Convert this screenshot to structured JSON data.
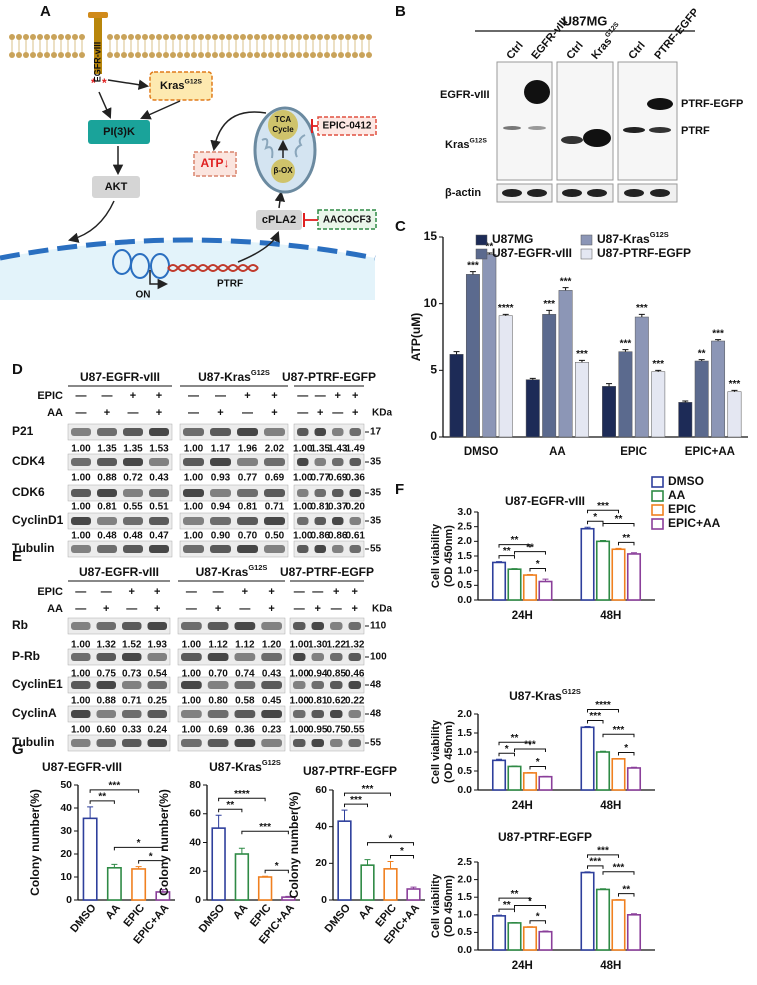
{
  "figure": {
    "panel_labels": [
      "A",
      "B",
      "C",
      "D",
      "E",
      "F",
      "G"
    ],
    "A": {
      "egfr": "EGFR-vIII",
      "kras": {
        "text": "Kras",
        "sup": "G12S"
      },
      "pi3k": "PI(3)K",
      "akt": "AKT",
      "atp": "ATP↓",
      "tca": [
        "TCA",
        "Cycle"
      ],
      "box": "β-OX",
      "epic": "EPIC-0412",
      "cpla2": "cPLA2",
      "aacocf3": "AACOCF3",
      "on": "ON",
      "ptrf": "PTRF"
    },
    "B": {
      "title": "U87MG",
      "lanes": [
        "Ctrl",
        "EGFR-vIII",
        "Ctrl",
        {
          "text": "Kras",
          "sup": "G12S"
        },
        "Ctrl",
        "PTRF-EGFP"
      ],
      "left": [
        "EGFR-vIII",
        {
          "text": "Kras",
          "sup": "G12S"
        },
        "β-actin"
      ],
      "right": [
        "PTRF-EGFP",
        "PTRF"
      ]
    },
    "D": {
      "groups": [
        "U87-EGFR-vIII",
        {
          "text": "U87-Kras",
          "sup": "G12S"
        },
        "U87-PTRF-EGFP"
      ],
      "treatments": [
        {
          "label": "EPIC",
          "signs": [
            "—",
            "—",
            "+",
            "+"
          ]
        },
        {
          "label": "AA",
          "signs": [
            "—",
            "+",
            "—",
            "+"
          ]
        }
      ],
      "kda_label": "KDa",
      "rows": [
        {
          "label": "P21",
          "kda": 17,
          "quant": [
            [
              "1.00",
              "1.35",
              "1.35",
              "1.53"
            ],
            [
              "1.00",
              "1.17",
              "1.96",
              "2.02"
            ],
            [
              "1.00",
              "1.35",
              "1.43",
              "1.49"
            ]
          ]
        },
        {
          "label": "CDK4",
          "kda": 35,
          "quant": [
            [
              "1.00",
              "0.88",
              "0.72",
              "0.43"
            ],
            [
              "1.00",
              "0.93",
              "0.77",
              "0.69"
            ],
            [
              "1.00",
              "0.77",
              "0.69",
              "0.36"
            ]
          ]
        },
        {
          "label": "CDK6",
          "kda": 35,
          "quant": [
            [
              "1.00",
              "0.81",
              "0.55",
              "0.51"
            ],
            [
              "1.00",
              "0.94",
              "0.81",
              "0.71"
            ],
            [
              "1.00",
              "0.81",
              "0.37",
              "0.20"
            ]
          ]
        },
        {
          "label": "CyclinD1",
          "kda": 35,
          "quant": [
            [
              "1.00",
              "0.48",
              "0.48",
              "0.47"
            ],
            [
              "1.00",
              "0.90",
              "0.70",
              "0.50"
            ],
            [
              "1.00",
              "0.86",
              "0.86",
              "0.61"
            ]
          ]
        },
        {
          "label": "Tubulin",
          "kda": 55
        }
      ]
    },
    "E": {
      "groups": [
        "U87-EGFR-vIII",
        {
          "text": "U87-Kras",
          "sup": "G12S"
        },
        "U87-PTRF-EGFP"
      ],
      "treatments": [
        {
          "label": "EPIC",
          "signs": [
            "—",
            "—",
            "+",
            "+"
          ]
        },
        {
          "label": "AA",
          "signs": [
            "—",
            "+",
            "—",
            "+"
          ]
        }
      ],
      "kda_label": "KDa",
      "rows": [
        {
          "label": "Rb",
          "kda": 110,
          "quant": [
            [
              "1.00",
              "1.32",
              "1.52",
              "1.93"
            ],
            [
              "1.00",
              "1.12",
              "1.12",
              "1.20"
            ],
            [
              "1.00",
              "1.30",
              "1.22",
              "1.32"
            ]
          ]
        },
        {
          "label": "P-Rb",
          "kda": 100,
          "quant": [
            [
              "1.00",
              "0.75",
              "0.73",
              "0.54"
            ],
            [
              "1.00",
              "0.70",
              "0.74",
              "0.43"
            ],
            [
              "1.00",
              "0.94",
              "0.85",
              "0.46"
            ]
          ]
        },
        {
          "label": "CyclinE1",
          "kda": 48,
          "quant": [
            [
              "1.00",
              "0.88",
              "0.71",
              "0.25"
            ],
            [
              "1.00",
              "0.80",
              "0.58",
              "0.45"
            ],
            [
              "1.00",
              "0.81",
              "0.62",
              "0.22"
            ]
          ]
        },
        {
          "label": "CyclinA",
          "kda": 48,
          "quant": [
            [
              "1.00",
              "0.60",
              "0.33",
              "0.24"
            ],
            [
              "1.00",
              "0.69",
              "0.36",
              "0.23"
            ],
            [
              "1.00",
              "0.95",
              "0.75",
              "0.55"
            ]
          ]
        },
        {
          "label": "Tubulin",
          "kda": 55
        }
      ]
    }
  },
  "chart_data": [
    {
      "type": "bar",
      "ylabel": "ATP(uM)",
      "categories": [
        "DMSO",
        "AA",
        "EPIC",
        "EPIC+AA"
      ],
      "ylim": [
        0,
        15
      ],
      "yticks": [
        0,
        5,
        10,
        15
      ],
      "legend": "top",
      "series": [
        {
          "name": "U87MG",
          "color": "#1d2b57",
          "values": [
            6.2,
            4.3,
            3.8,
            2.6
          ],
          "errors": [
            0.2,
            0.1,
            0.2,
            0.1
          ]
        },
        {
          "name": "U87-EGFR-vIII",
          "color": "#5b6a8e",
          "values": [
            12.2,
            9.2,
            6.4,
            5.7
          ],
          "errors": [
            0.2,
            0.3,
            0.15,
            0.1
          ],
          "significance": [
            "***",
            "***",
            "***",
            "**"
          ]
        },
        {
          "name": {
            "text": "U87-Kras",
            "sup": "G12S"
          },
          "color": "#8c96b6",
          "values": [
            13.7,
            11.0,
            9.0,
            7.2
          ],
          "errors": [
            0.1,
            0.2,
            0.2,
            0.1
          ],
          "significance": [
            "**",
            "***",
            "***",
            "***"
          ]
        },
        {
          "name": "U87-PTRF-EGFP",
          "color": "#e4e7f2",
          "values": [
            9.1,
            5.6,
            4.9,
            3.4
          ],
          "errors": [
            0.1,
            0.15,
            0.1,
            0.1
          ],
          "significance": [
            "****",
            "***",
            "***",
            "***"
          ]
        }
      ]
    },
    {
      "type": "bar",
      "title": "U87-EGFR-vIII",
      "ylabel": [
        "Cell viability",
        "(OD 450nm)"
      ],
      "categories": [
        "24H",
        "48H"
      ],
      "ylim": [
        0,
        3
      ],
      "yticks": [
        {
          "value": 0,
          "label": "0.0"
        },
        0.5,
        {
          "value": 1,
          "label": "1.0"
        },
        1.5,
        {
          "value": 2,
          "label": "2.0"
        },
        2.5,
        {
          "value": 3,
          "label": "3.0"
        }
      ],
      "legend": "right",
      "hollow": true,
      "series": [
        {
          "name": "DMSO",
          "color": "#2e3f9c",
          "values": [
            1.28,
            2.43
          ],
          "errors": [
            0.03,
            0.05
          ]
        },
        {
          "name": "AA",
          "color": "#2f8a45",
          "values": [
            1.05,
            2.0
          ],
          "errors": [
            0.02,
            0.03
          ]
        },
        {
          "name": "EPIC",
          "color": "#f08020",
          "values": [
            0.85,
            1.73
          ],
          "errors": [
            0.02,
            0.03
          ]
        },
        {
          "name": "EPIC+AA",
          "color": "#8a3f9a",
          "values": [
            0.63,
            1.57
          ],
          "errors": [
            0.08,
            0.04
          ]
        }
      ],
      "annotations": [
        [
          "**",
          "**",
          "**",
          "*"
        ],
        [
          "*",
          "***",
          "**",
          "**"
        ]
      ]
    },
    {
      "type": "bar",
      "title": {
        "text": "U87-Kras",
        "sup": "G12S"
      },
      "ylabel": [
        "Cell viability",
        "(OD 450nm)"
      ],
      "categories": [
        "24H",
        "48H"
      ],
      "ylim": [
        0,
        2
      ],
      "yticks": [
        {
          "value": 0,
          "label": "0.0"
        },
        0.5,
        {
          "value": 1,
          "label": "1.0"
        },
        1.5,
        {
          "value": 2,
          "label": "2.0"
        }
      ],
      "hollow": true,
      "series": [
        {
          "color": "#2e3f9c",
          "values": [
            0.78,
            1.65
          ],
          "errors": [
            0.03,
            0.02
          ]
        },
        {
          "color": "#2f8a45",
          "values": [
            0.62,
            1.0
          ],
          "errors": [
            0.01,
            0.02
          ]
        },
        {
          "color": "#f08020",
          "values": [
            0.45,
            0.82
          ],
          "errors": [
            0.01,
            0.01
          ]
        },
        {
          "color": "#8a3f9a",
          "values": [
            0.35,
            0.58
          ],
          "errors": [
            0.01,
            0.02
          ]
        }
      ],
      "annotations": [
        [
          "*",
          "**",
          "***",
          "*"
        ],
        [
          "***",
          "****",
          "***",
          "*"
        ]
      ]
    },
    {
      "type": "bar",
      "title": "U87-PTRF-EGFP",
      "ylabel": [
        "Cell viability",
        "(OD 450nm)"
      ],
      "categories": [
        "24H",
        "48H"
      ],
      "ylim": [
        0,
        2.5
      ],
      "yticks": [
        {
          "value": 0,
          "label": "0.0"
        },
        0.5,
        {
          "value": 1,
          "label": "1.0"
        },
        1.5,
        {
          "value": 2,
          "label": "2.0"
        },
        2.5
      ],
      "hollow": true,
      "series": [
        {
          "color": "#2e3f9c",
          "values": [
            0.97,
            2.2
          ],
          "errors": [
            0.02,
            0.02
          ]
        },
        {
          "color": "#2f8a45",
          "values": [
            0.77,
            1.72
          ],
          "errors": [
            0.01,
            0.02
          ]
        },
        {
          "color": "#f08020",
          "values": [
            0.65,
            1.42
          ],
          "errors": [
            0.01,
            0.01
          ]
        },
        {
          "color": "#8a3f9a",
          "values": [
            0.52,
            1.0
          ],
          "errors": [
            0.02,
            0.03
          ]
        }
      ],
      "annotations": [
        [
          "**",
          "**",
          "*",
          "*"
        ],
        [
          "***",
          "***",
          "***",
          "**"
        ]
      ]
    },
    {
      "type": "bar",
      "title": "U87-EGFR-vIII",
      "ylabel": "Colony number(%)",
      "categories": [
        "DMSO",
        "AA",
        "EPIC",
        "EPIC+AA"
      ],
      "ylim": [
        0,
        50
      ],
      "yticks": [
        0,
        10,
        20,
        30,
        40,
        50
      ],
      "hollow": true,
      "colors": [
        "#2e3f9c",
        "#2f8a45",
        "#f08020",
        "#8a3f9a"
      ],
      "values": [
        35.5,
        14,
        13.5,
        3.5
      ],
      "errors": [
        5,
        1.5,
        1,
        1
      ],
      "annotations": [
        "**",
        "***",
        "*",
        "*"
      ]
    },
    {
      "type": "bar",
      "title": {
        "text": "U87-Kras",
        "sup": "G12S"
      },
      "ylabel": "Colony number(%)",
      "categories": [
        "DMSO",
        "AA",
        "EPIC",
        "EPIC+AA"
      ],
      "ylim": [
        0,
        80
      ],
      "yticks": [
        0,
        20,
        40,
        60,
        80
      ],
      "hollow": true,
      "colors": [
        "#2e3f9c",
        "#2f8a45",
        "#f08020",
        "#8a3f9a"
      ],
      "values": [
        50,
        32,
        16,
        2
      ],
      "errors": [
        9,
        4,
        0.5,
        0.5
      ],
      "annotations": [
        "**",
        "****",
        "***",
        "*"
      ]
    },
    {
      "type": "bar",
      "title": "U87-PTRF-EGFP",
      "ylabel": "Colony number(%)",
      "categories": [
        "DMSO",
        "AA",
        "EPIC",
        "EPIC+AA"
      ],
      "ylim": [
        0,
        60
      ],
      "yticks": [
        0,
        20,
        40,
        60
      ],
      "hollow": true,
      "colors": [
        "#2e3f9c",
        "#2f8a45",
        "#f08020",
        "#8a3f9a"
      ],
      "values": [
        43,
        19,
        17,
        6
      ],
      "errors": [
        6,
        3,
        4,
        1
      ],
      "annotations": [
        "***",
        "***",
        "*",
        "*"
      ]
    }
  ]
}
